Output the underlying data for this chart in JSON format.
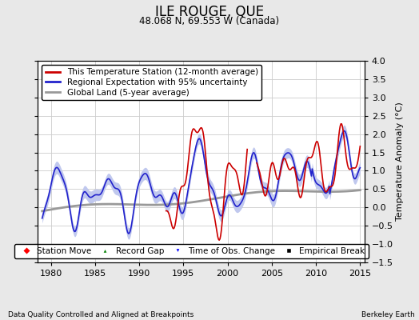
{
  "title": "ILE ROUGE, QUE",
  "subtitle": "48.068 N, 69.553 W (Canada)",
  "ylabel": "Temperature Anomaly (°C)",
  "xlabel_note": "Data Quality Controlled and Aligned at Breakpoints",
  "credit": "Berkeley Earth",
  "xlim": [
    1978.5,
    2015.5
  ],
  "ylim": [
    -1.5,
    4.0
  ],
  "yticks": [
    -1.5,
    -1.0,
    -0.5,
    0,
    0.5,
    1.0,
    1.5,
    2.0,
    2.5,
    3.0,
    3.5,
    4.0
  ],
  "xticks": [
    1980,
    1985,
    1990,
    1995,
    2000,
    2005,
    2010,
    2015
  ],
  "station_color": "#cc0000",
  "regional_color": "#2222cc",
  "regional_fill_color": "#c0c8ee",
  "global_color": "#999999",
  "bg_color": "#e8e8e8",
  "plot_bg": "#ffffff",
  "grid_color": "#cccccc",
  "title_fontsize": 12,
  "subtitle_fontsize": 8.5,
  "legend_fontsize": 7.5,
  "axis_fontsize": 8,
  "tick_fontsize": 8
}
